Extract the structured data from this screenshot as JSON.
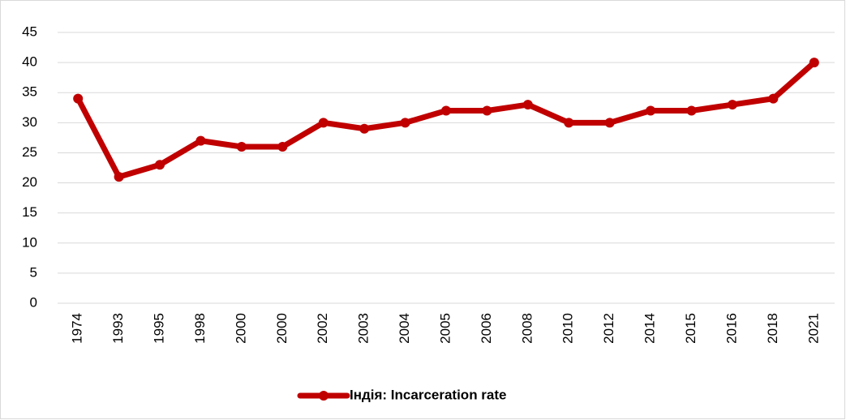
{
  "chart_data": {
    "type": "line",
    "categories": [
      "1974",
      "1993",
      "1995",
      "1998",
      "2000",
      "2000",
      "2002",
      "2003",
      "2004",
      "2005",
      "2006",
      "2008",
      "2010",
      "2012",
      "2014",
      "2015",
      "2016",
      "2018",
      "2021"
    ],
    "series": [
      {
        "name": "Індія: Incarceration rate",
        "color": "#c00000",
        "values": [
          34,
          21,
          23,
          27,
          26,
          26,
          30,
          29,
          30,
          32,
          32,
          33,
          30,
          30,
          32,
          32,
          33,
          34,
          40
        ]
      }
    ],
    "ylim": [
      0,
      45
    ],
    "yticks": [
      0,
      5,
      10,
      15,
      20,
      25,
      30,
      35,
      40,
      45
    ],
    "grid": true,
    "legend": "bottom"
  }
}
